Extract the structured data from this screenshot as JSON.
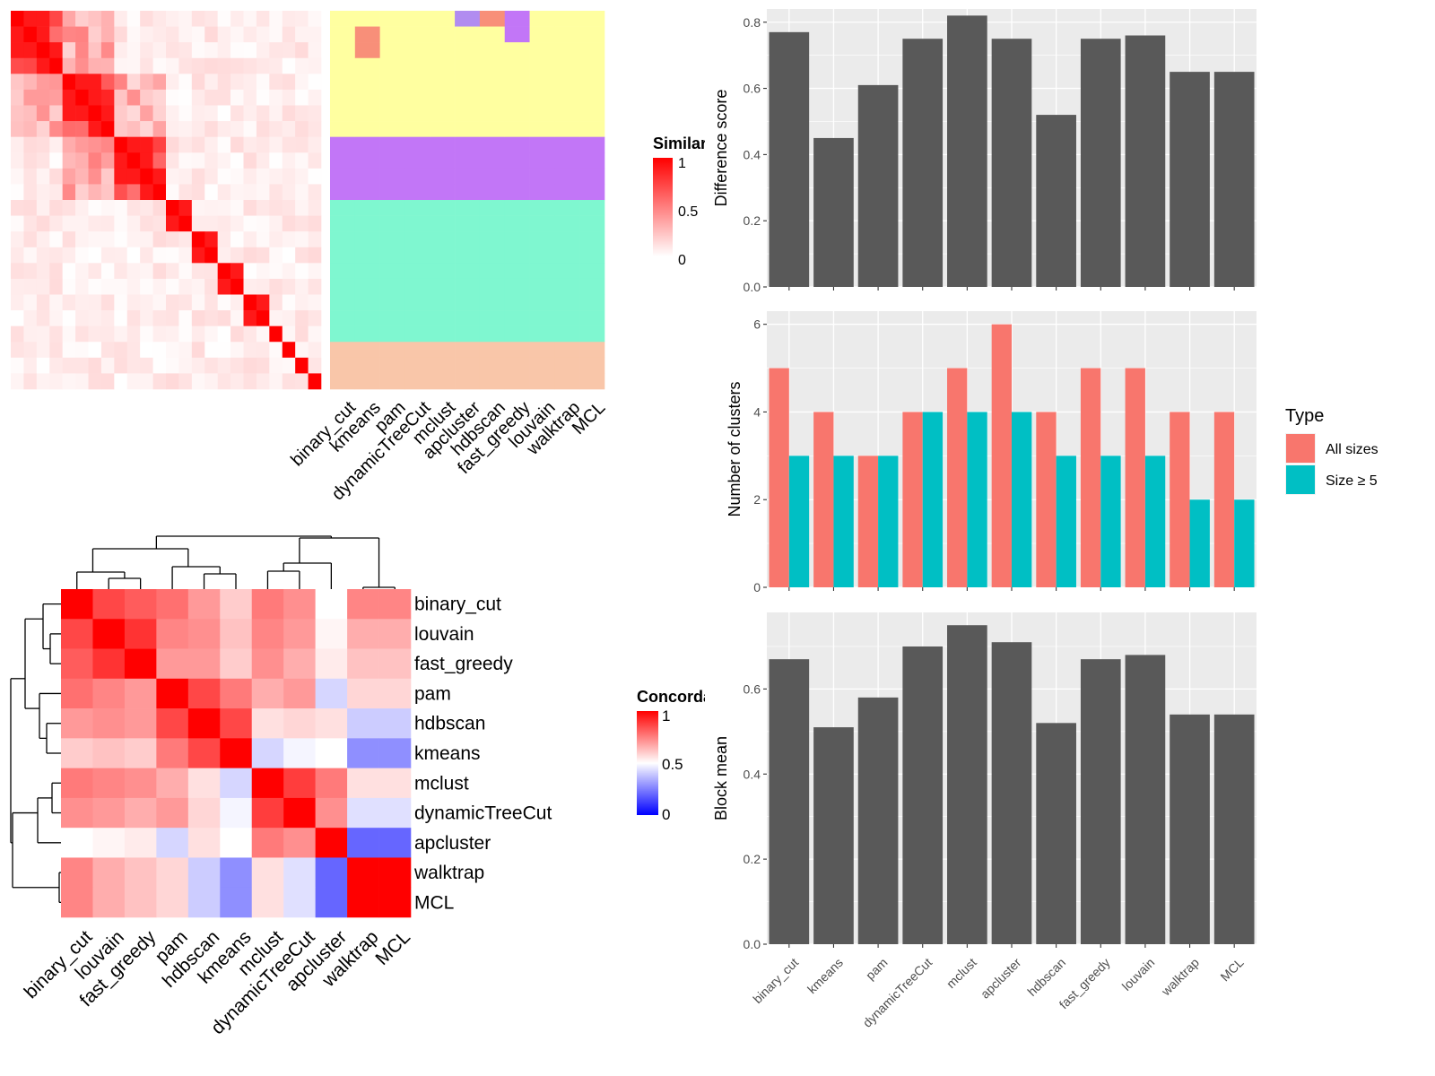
{
  "chart_data": [
    {
      "type": "heatmap",
      "panel": "similarity-heatmap",
      "legend_title": "Similarity",
      "legend_ticks": [
        "1",
        "0.5",
        "0"
      ],
      "column_labels": [
        "binary_cut",
        "kmeans",
        "pam",
        "dynamicTreeCut",
        "mclust",
        "apcluster",
        "hdbscan",
        "fast_greedy",
        "louvain",
        "walktrap",
        "MCL"
      ],
      "n_terms": 24,
      "blocks": [
        [
          0,
          4
        ],
        [
          4,
          8
        ],
        [
          8,
          12
        ],
        [
          12,
          14
        ],
        [
          14,
          16
        ],
        [
          16,
          18
        ],
        [
          18,
          20
        ],
        [
          20,
          21
        ],
        [
          21,
          22
        ],
        [
          22,
          23
        ],
        [
          23,
          24
        ]
      ],
      "strong_pairs": [
        [
          0,
          1
        ],
        [
          1,
          2
        ],
        [
          2,
          3
        ],
        [
          4,
          5
        ],
        [
          5,
          6
        ],
        [
          6,
          7
        ],
        [
          8,
          9
        ],
        [
          9,
          10
        ],
        [
          10,
          11
        ],
        [
          0,
          2
        ],
        [
          4,
          6
        ],
        [
          8,
          10
        ],
        [
          14,
          15
        ],
        [
          16,
          17
        ],
        [
          18,
          19
        ],
        [
          12,
          13
        ]
      ],
      "cluster_colors": [
        "#ffffa0",
        "#c276f7",
        "#7ff7d0",
        "#f9c6a9",
        "#f88f79",
        "#b18cf0"
      ],
      "cluster_assignments": [
        [
          0,
          0,
          0,
          0,
          0,
          0,
          0,
          0,
          0,
          0,
          0,
          0,
          0,
          0,
          0,
          0,
          0,
          0,
          0,
          0,
          0,
          0,
          0,
          0
        ],
        [
          0,
          4,
          4,
          0,
          0,
          0,
          0,
          0,
          0,
          0,
          0,
          0,
          0,
          0,
          0,
          0,
          0,
          0,
          0,
          0,
          0,
          0,
          0,
          0
        ],
        [
          0,
          0,
          0,
          0,
          0,
          0,
          0,
          0,
          0,
          0,
          0,
          0,
          0,
          0,
          0,
          0,
          0,
          0,
          0,
          0,
          0,
          0,
          0,
          0
        ],
        [
          0,
          0,
          0,
          0,
          0,
          0,
          0,
          0,
          0,
          0,
          0,
          0,
          0,
          0,
          0,
          0,
          0,
          0,
          0,
          0,
          0,
          0,
          0,
          0
        ],
        [
          0,
          0,
          0,
          0,
          0,
          0,
          0,
          0,
          0,
          0,
          0,
          0,
          0,
          0,
          0,
          0,
          0,
          0,
          0,
          0,
          0,
          0,
          0,
          0
        ],
        [
          5,
          0,
          0,
          0,
          0,
          0,
          0,
          0,
          0,
          0,
          0,
          0,
          0,
          0,
          0,
          0,
          0,
          0,
          0,
          0,
          0,
          0,
          0,
          0
        ],
        [
          4,
          0,
          0,
          0,
          0,
          0,
          0,
          0,
          0,
          0,
          0,
          0,
          0,
          0,
          0,
          0,
          0,
          0,
          0,
          0,
          0,
          0,
          0,
          0
        ],
        [
          1,
          1,
          0,
          0,
          0,
          0,
          0,
          0,
          0,
          0,
          0,
          0,
          0,
          0,
          0,
          0,
          0,
          0,
          0,
          0,
          0,
          0,
          0,
          0
        ],
        [
          0,
          0,
          0,
          0,
          0,
          0,
          0,
          0,
          0,
          0,
          0,
          0,
          0,
          0,
          0,
          0,
          0,
          0,
          0,
          0,
          0,
          0,
          0,
          0
        ],
        [
          0,
          0,
          0,
          0,
          0,
          0,
          0,
          0,
          0,
          0,
          0,
          0,
          0,
          0,
          0,
          0,
          0,
          0,
          0,
          0,
          0,
          0,
          0,
          0
        ],
        [
          0,
          0,
          0,
          0,
          0,
          0,
          0,
          0,
          0,
          0,
          0,
          0,
          0,
          0,
          0,
          0,
          0,
          0,
          0,
          0,
          0,
          0,
          0,
          0
        ]
      ]
    },
    {
      "type": "heatmap",
      "panel": "concordance-heatmap",
      "legend_title": "Concordance",
      "legend_ticks": [
        "1",
        "0.5",
        "0"
      ],
      "labels": [
        "binary_cut",
        "louvain",
        "fast_greedy",
        "pam",
        "hdbscan",
        "kmeans",
        "mclust",
        "dynamicTreeCut",
        "apcluster",
        "walktrap",
        "MCL"
      ],
      "matrix": [
        [
          1.0,
          0.86,
          0.82,
          0.78,
          0.7,
          0.6,
          0.76,
          0.72,
          0.5,
          0.74,
          0.74
        ],
        [
          0.86,
          1.0,
          0.9,
          0.74,
          0.72,
          0.62,
          0.74,
          0.7,
          0.52,
          0.66,
          0.66
        ],
        [
          0.82,
          0.9,
          1.0,
          0.7,
          0.7,
          0.6,
          0.72,
          0.66,
          0.54,
          0.62,
          0.62
        ],
        [
          0.78,
          0.74,
          0.7,
          1.0,
          0.86,
          0.76,
          0.66,
          0.7,
          0.42,
          0.58,
          0.58
        ],
        [
          0.7,
          0.72,
          0.7,
          0.86,
          1.0,
          0.86,
          0.56,
          0.58,
          0.56,
          0.4,
          0.4
        ],
        [
          0.6,
          0.62,
          0.6,
          0.76,
          0.86,
          1.0,
          0.42,
          0.48,
          0.5,
          0.28,
          0.28
        ],
        [
          0.76,
          0.74,
          0.72,
          0.66,
          0.56,
          0.42,
          1.0,
          0.88,
          0.76,
          0.56,
          0.56
        ],
        [
          0.72,
          0.7,
          0.66,
          0.7,
          0.58,
          0.48,
          0.88,
          1.0,
          0.72,
          0.44,
          0.44
        ],
        [
          0.5,
          0.52,
          0.54,
          0.42,
          0.56,
          0.5,
          0.76,
          0.72,
          1.0,
          0.2,
          0.2
        ],
        [
          0.74,
          0.66,
          0.62,
          0.58,
          0.4,
          0.28,
          0.56,
          0.44,
          0.2,
          1.0,
          1.0
        ],
        [
          0.74,
          0.66,
          0.62,
          0.58,
          0.4,
          0.28,
          0.56,
          0.44,
          0.2,
          1.0,
          1.0
        ]
      ]
    },
    {
      "type": "bar",
      "panel": "difference-score",
      "categories": [
        "binary_cut",
        "kmeans",
        "pam",
        "dynamicTreeCut",
        "mclust",
        "apcluster",
        "hdbscan",
        "fast_greedy",
        "louvain",
        "walktrap",
        "MCL"
      ],
      "values": [
        0.77,
        0.45,
        0.61,
        0.75,
        0.82,
        0.75,
        0.52,
        0.75,
        0.76,
        0.65,
        0.65
      ],
      "ylabel": "Difference score",
      "ylim": [
        0,
        0.84
      ],
      "yticks": [
        0.0,
        0.2,
        0.4,
        0.6,
        0.8
      ],
      "ytick_labels": [
        "0.0",
        "0.2",
        "0.4",
        "0.6",
        "0.8"
      ],
      "bar_color": "#595959"
    },
    {
      "type": "bar",
      "panel": "number-of-clusters",
      "categories": [
        "binary_cut",
        "kmeans",
        "pam",
        "dynamicTreeCut",
        "mclust",
        "apcluster",
        "hdbscan",
        "fast_greedy",
        "louvain",
        "walktrap",
        "MCL"
      ],
      "series": [
        {
          "name": "All sizes",
          "values": [
            5,
            4,
            3,
            4,
            5,
            6,
            4,
            5,
            5,
            4,
            4
          ],
          "color": "#f8766d"
        },
        {
          "name": "Size ≥ 5",
          "values": [
            3,
            3,
            3,
            4,
            4,
            4,
            3,
            3,
            3,
            2,
            2
          ],
          "color": "#00bfc4"
        }
      ],
      "ylabel": "Number of clusters",
      "ylim": [
        0,
        6.3
      ],
      "yticks": [
        0,
        2,
        4,
        6
      ],
      "ytick_labels": [
        "0",
        "2",
        "4",
        "6"
      ],
      "legend_title": "Type",
      "legend_position": "right"
    },
    {
      "type": "bar",
      "panel": "block-mean",
      "categories": [
        "binary_cut",
        "kmeans",
        "pam",
        "dynamicTreeCut",
        "mclust",
        "apcluster",
        "hdbscan",
        "fast_greedy",
        "louvain",
        "walktrap",
        "MCL"
      ],
      "values": [
        0.67,
        0.51,
        0.58,
        0.7,
        0.75,
        0.71,
        0.52,
        0.67,
        0.68,
        0.54,
        0.54
      ],
      "ylabel": "Block mean",
      "xlabel": "",
      "ylim": [
        0,
        0.78
      ],
      "yticks": [
        0.0,
        0.2,
        0.4,
        0.6
      ],
      "ytick_labels": [
        "0.0",
        "0.2",
        "0.4",
        "0.6"
      ],
      "bar_color": "#595959"
    }
  ]
}
